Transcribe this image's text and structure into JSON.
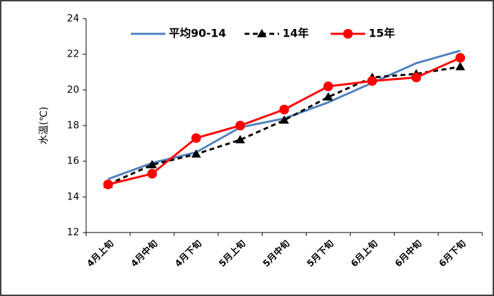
{
  "chart_data": {
    "type": "line",
    "title": "",
    "xlabel": "",
    "ylabel": "水温(℃)",
    "ylim": [
      12,
      24
    ],
    "yticks": [
      12,
      14,
      16,
      18,
      20,
      22,
      24
    ],
    "grid": false,
    "legend_position": "top",
    "categories": [
      "4月上旬",
      "4月中旬",
      "4月下旬",
      "5月上旬",
      "5月中旬",
      "5月下旬",
      "6月上旬",
      "6月中旬",
      "6月下旬"
    ],
    "series": [
      {
        "name": "平均90-14",
        "color": "#4f81bd",
        "style": "solid",
        "marker": "none",
        "values": [
          15.0,
          15.9,
          16.5,
          17.9,
          18.4,
          19.3,
          20.4,
          21.5,
          22.2
        ]
      },
      {
        "name": "14年",
        "color": "#000000",
        "style": "dashed",
        "marker": "triangle",
        "values": [
          14.7,
          15.8,
          16.4,
          17.2,
          18.3,
          19.6,
          20.7,
          20.9,
          21.3
        ]
      },
      {
        "name": "15年",
        "color": "#ff0000",
        "style": "solid",
        "marker": "circle",
        "values": [
          14.7,
          15.3,
          17.3,
          18.0,
          18.9,
          20.2,
          20.5,
          20.7,
          21.8
        ]
      }
    ]
  }
}
